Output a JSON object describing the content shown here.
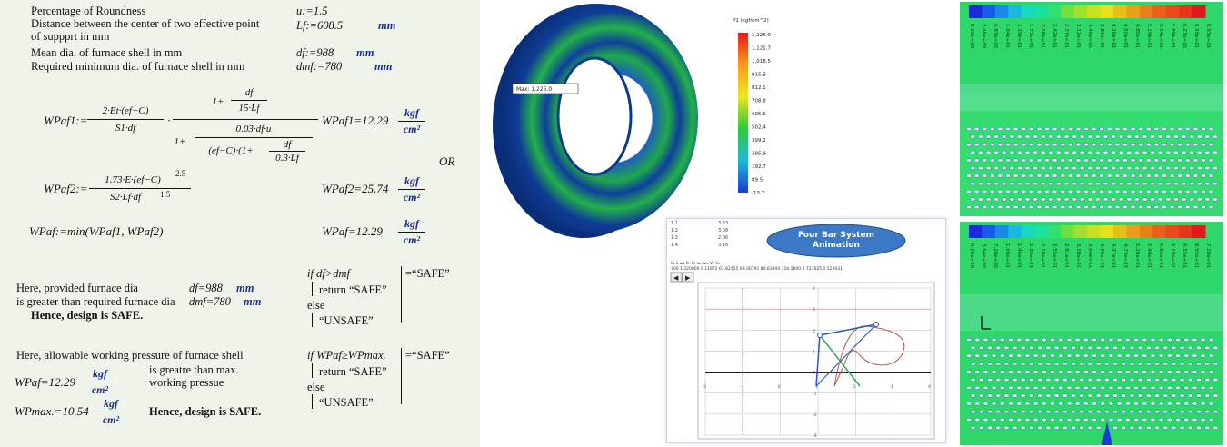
{
  "mathcad": {
    "defs": [
      {
        "label": "Percentage of Roundness",
        "expr": "u:=1.5",
        "unit": ""
      },
      {
        "label": "Distance between the center of two effective point",
        "label2": "of suppprt in mm",
        "expr": "Lf:=608.5",
        "unit": "mm"
      },
      {
        "label": "Mean dia. of furnace shell in mm",
        "expr": "df:=988",
        "unit": "mm"
      },
      {
        "label": "Required minimum  dia. of furnace shell in mm",
        "expr": "dmf:=780",
        "unit": "mm"
      }
    ],
    "wpaf1_lhs": "WPaf1:=",
    "wpaf1_num_a": "2·Et·(ef−C)",
    "wpaf1_den_a": "S1·df",
    "wpaf1_num_b_top": "1+",
    "wpaf1_num_b_frac_top": "df",
    "wpaf1_num_b_frac_bot": "15·Lf",
    "wpaf1_den_b_1": "1+",
    "wpaf1_den_b_num": "0.03·df·u",
    "wpaf1_den_b_den": "(ef−C)·(1+",
    "wpaf1_den_b_den2": "df",
    "wpaf1_den_b_den3": "0.3·Lf",
    "wpaf1_result": "WPaf1=12.29",
    "or_label": "OR",
    "wpaf2_lhs": "WPaf2:=",
    "wpaf2_num": "1.73·E·(ef−C)",
    "wpaf2_exp": "2.5",
    "wpaf2_den": "S2·Lf·df",
    "wpaf2_den_exp": "1.5",
    "wpaf2_result": "WPaf2=25.74",
    "wpaf_lhs": "WPaf:=min(WPaf1, WPaf2)",
    "wpaf_result": "WPaf=12.29",
    "unit_num": "kgf",
    "unit_den": "cm²",
    "check1": {
      "line1": "Here, provided furnace dia",
      "val1": "df=988",
      "unit1": "mm",
      "line2": "is greater than required furnace dia",
      "val2": "dmf=780",
      "unit2": "mm",
      "conclusion": "Hence, design is SAFE.",
      "if": "if df>dmf",
      "result": "=“SAFE”",
      "ret": "return “SAFE”",
      "else": "else",
      "unsafe": "“UNSAFE”"
    },
    "check2": {
      "line1": "Here, allowable working pressure of furnace shell",
      "line2": "is greatre than max.",
      "line3": "working pressue",
      "wpaf": "WPaf=12.29",
      "wpmax": "WPmax.=10.54",
      "conclusion": "Hence, design is SAFE.",
      "if": "if WPaf≥WPmax.",
      "result": "=“SAFE”",
      "ret": "return “SAFE”",
      "else": "else",
      "unsafe": "“UNSAFE”"
    }
  },
  "fea": {
    "legend_title": "P1 (kgf/cm^2)",
    "legend_values": [
      "1,225.0",
      "1,121.7",
      "1,018.5",
      "915.3",
      "812.1",
      "708.8",
      "605.6",
      "502.4",
      "399.2",
      "295.9",
      "192.7",
      "89.5",
      "-13.7"
    ],
    "max_label": "Max: 1,225.0",
    "colors": {
      "ring": "#1fa83a",
      "outer": "#0a3d8a"
    }
  },
  "fourbar": {
    "title1": "Four Bar System",
    "title2": "Animation",
    "table_rows": [
      [
        "1.1",
        "3.33"
      ],
      [
        "1.2",
        "3.08"
      ],
      [
        "1.3",
        "2.06"
      ],
      [
        "1.4",
        "3.16"
      ]
    ],
    "header_row": "θ₂   L   ω₂   θ₃   θ₄   ω₃   ω₄   V₃   V₄",
    "value_row": "300  1.220000  0.11872  61.82155  69.30791  80.63904  316.1800  2.727625  2.523031",
    "prev_btn": "◀",
    "next_btn": "▶",
    "x_ticks": [
      "-2",
      "-1",
      "0",
      "1",
      "2",
      "3",
      "4"
    ],
    "y_ticks": [
      "4",
      "3",
      "2",
      "1",
      "0",
      "-1",
      "-2",
      "-3"
    ]
  },
  "cfd_top": {
    "labels": [
      "0.00e+00",
      "3.46e+00",
      "6.93e+00",
      "1.04e+01",
      "1.39e+01",
      "1.73e+01",
      "2.08e+01",
      "2.42e+01",
      "2.77e+01",
      "3.12e+01",
      "3.46e+01",
      "3.81e+01",
      "4.16e+01",
      "4.50e+01",
      "4.85e+01",
      "5.19e+01",
      "5.54e+01",
      "5.89e+01",
      "6.23e+01",
      "6.58e+01",
      "6.93e+01"
    ]
  },
  "cfd_bottom": {
    "labels": [
      "0.00e+00",
      "3.64e+00",
      "7.28e+00",
      "1.09e+01",
      "1.46e+01",
      "1.82e+01",
      "2.18e+01",
      "2.55e+01",
      "2.91e+01",
      "3.28e+01",
      "3.64e+01",
      "4.00e+01",
      "4.37e+01",
      "4.73e+01",
      "5.10e+01",
      "5.46e+01",
      "5.82e+01",
      "6.19e+01",
      "6.55e+01",
      "6.92e+01",
      "7.28e+01"
    ]
  }
}
